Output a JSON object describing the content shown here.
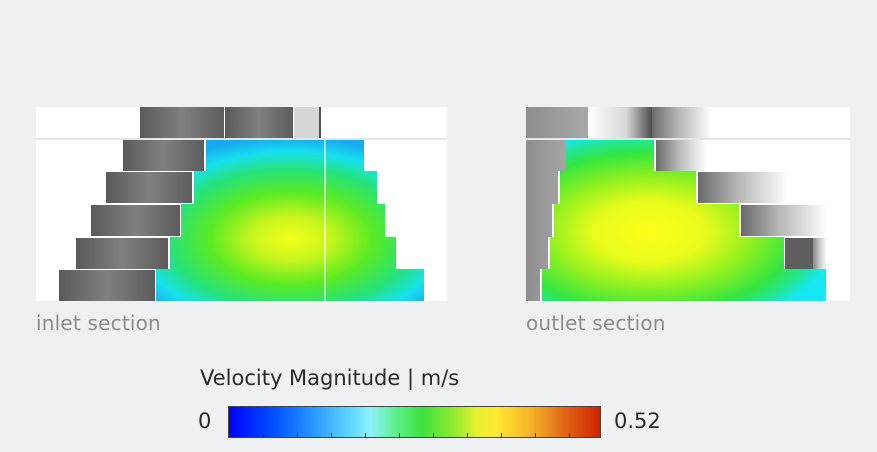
{
  "sections": {
    "inlet": {
      "caption": "inlet section"
    },
    "outlet": {
      "caption": "outlet section"
    }
  },
  "legend": {
    "title": "Velocity Magnitude | m/s",
    "min_label": "0",
    "max_label": "0.52",
    "min_value": 0,
    "max_value": 0.52,
    "colormap": "blue-cyan-green-yellow-red"
  },
  "colors": {
    "background": "#eef0f2",
    "caption": "#8a8c90",
    "wall": "#6e6e6e"
  }
}
